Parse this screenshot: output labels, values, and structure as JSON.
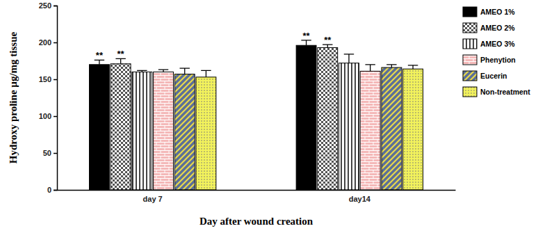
{
  "chart_data": {
    "type": "bar",
    "y_label": "Hydroxy proline µg/mg tissue",
    "x_label": "Day after wound creation",
    "categories": [
      "day 7",
      "day14"
    ],
    "series": [
      {
        "name": "AMEO 1%",
        "color": "#000000",
        "values": [
          170,
          196
        ],
        "errors": [
          6,
          7
        ]
      },
      {
        "name": "AMEO 2%",
        "color": "#ffffff",
        "values": [
          171,
          193
        ],
        "errors": [
          7,
          4
        ]
      },
      {
        "name": "AMEO 3%",
        "color": "#ffffff",
        "values": [
          160,
          172
        ],
        "errors": [
          2,
          12
        ]
      },
      {
        "name": "Phenytion",
        "color": "#f4b8b8",
        "values": [
          160,
          161
        ],
        "errors": [
          3,
          9
        ]
      },
      {
        "name": "Eucerin",
        "color": "#5b6f99",
        "values": [
          157,
          166
        ],
        "errors": [
          8,
          4
        ]
      },
      {
        "name": "Non-treatment",
        "color": "#f2f25c",
        "values": [
          153,
          164
        ],
        "errors": [
          9,
          5
        ]
      }
    ],
    "annotations": [
      {
        "text": "**",
        "series": "AMEO 1%",
        "category": "day 7"
      },
      {
        "text": "**",
        "series": "AMEO 2%",
        "category": "day 7"
      },
      {
        "text": "**",
        "series": "AMEO 1%",
        "category": "day14"
      },
      {
        "text": "**",
        "series": "AMEO 2%",
        "category": "day14"
      }
    ],
    "ylim": [
      0,
      250
    ],
    "yticks": [
      0,
      50,
      100,
      150,
      200,
      250
    ],
    "legend": "right"
  }
}
